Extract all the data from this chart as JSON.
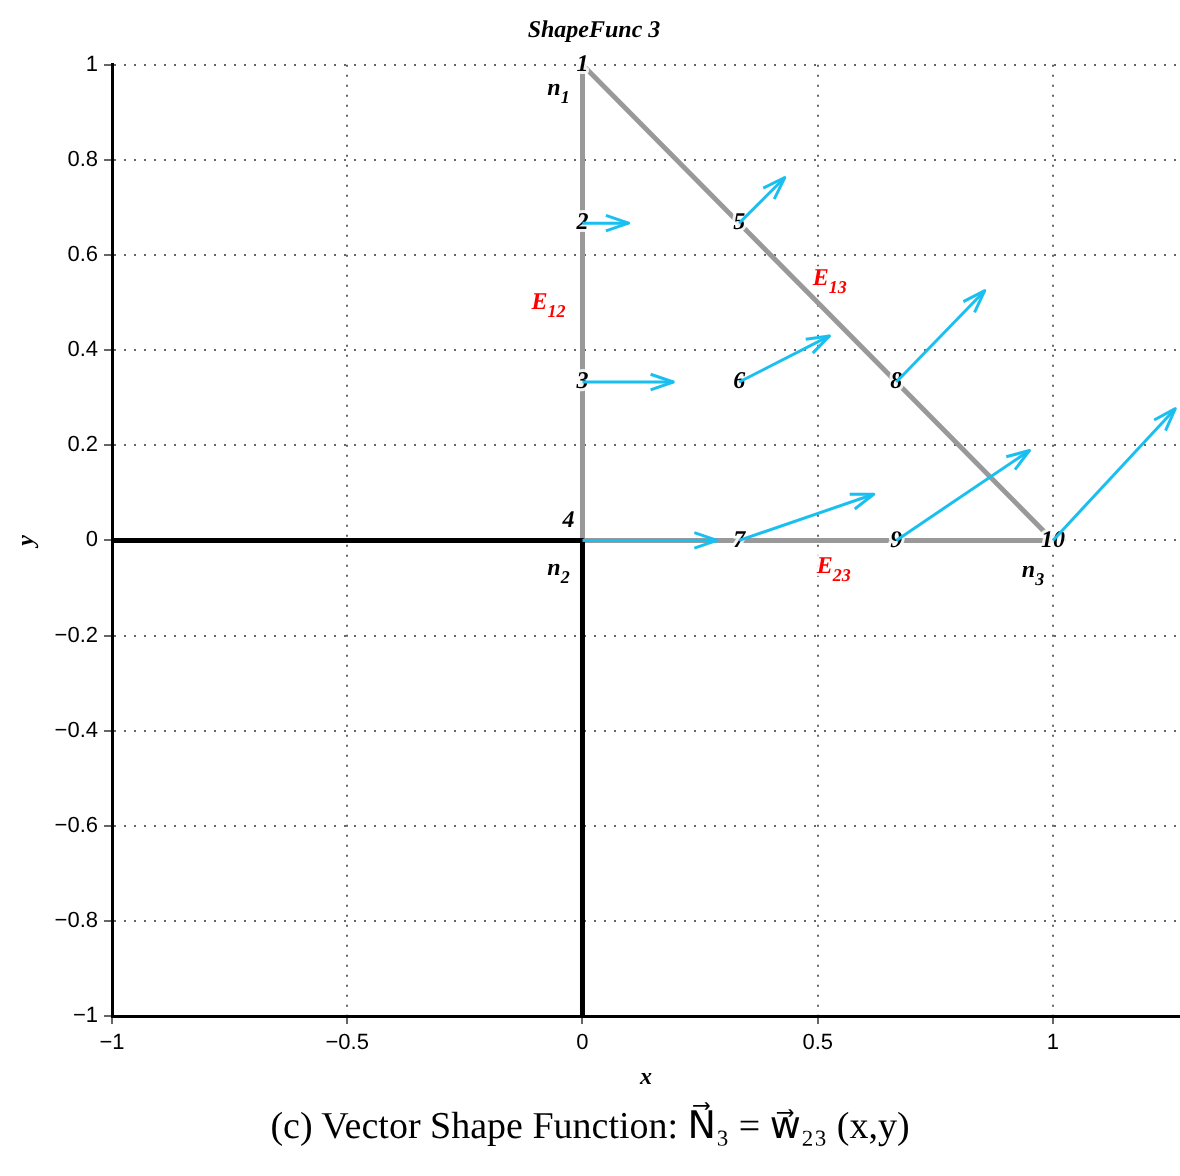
{
  "chart_data": {
    "type": "line",
    "title": "ShapeFunc 3",
    "xlabel": "x",
    "ylabel": "y",
    "xlim": [
      -1,
      1.27
    ],
    "ylim": [
      -1,
      1
    ],
    "xticks": [
      {
        "value": -1,
        "label": "−1"
      },
      {
        "value": -0.5,
        "label": "−0.5"
      },
      0,
      0.5,
      1
    ],
    "yticks": [
      {
        "value": -1,
        "label": "−1"
      },
      {
        "value": -0.8,
        "label": "−0.8"
      },
      {
        "value": -0.6,
        "label": "−0.6"
      },
      {
        "value": -0.4,
        "label": "−0.4"
      },
      {
        "value": -0.2,
        "label": "−0.2"
      },
      0,
      0.2,
      0.4,
      0.6,
      0.8,
      1
    ],
    "grid": true,
    "legend": false,
    "marker": "none",
    "line_style": "solid",
    "series": [
      {
        "color": "#000000",
        "x": [
          -1,
          0,
          0
        ],
        "values": [
          0,
          0,
          -1
        ]
      },
      {
        "color": "#999999",
        "x": [
          0,
          0,
          0,
          0.5,
          1
        ],
        "values": [
          1,
          0.5,
          0,
          0,
          0
        ]
      },
      {
        "color": "#999999",
        "x": [
          0,
          0.5,
          1
        ],
        "values": [
          1,
          0.5,
          0
        ]
      },
      {
        "color": "#19bff0",
        "x": [
          0,
          0.098
        ],
        "values": [
          0.667,
          0.667
        ]
      },
      {
        "color": "#19bff0",
        "x": [
          0,
          0.193
        ],
        "values": [
          0.333,
          0.333
        ]
      },
      {
        "color": "#19bff0",
        "x": [
          0,
          0.286
        ],
        "values": [
          0,
          0
        ]
      },
      {
        "color": "#19bff0",
        "x": [
          0.333,
          0.43
        ],
        "values": [
          0.667,
          0.763
        ]
      },
      {
        "color": "#19bff0",
        "x": [
          0.333,
          0.525
        ],
        "values": [
          0.333,
          0.43
        ]
      },
      {
        "color": "#19bff0",
        "x": [
          0.333,
          0.619
        ],
        "values": [
          0,
          0.097
        ]
      },
      {
        "color": "#19bff0",
        "x": [
          0.667,
          0.855
        ],
        "values": [
          0.333,
          0.525
        ]
      },
      {
        "color": "#19bff0",
        "x": [
          0.667,
          0.95
        ],
        "values": [
          0,
          0.189
        ]
      },
      {
        "color": "#19bff0",
        "x": [
          1,
          1.26
        ],
        "values": [
          0,
          0.277
        ]
      }
    ],
    "annotations": [
      {
        "text": "1",
        "x": 0,
        "y": 1
      },
      {
        "text": "2",
        "x": 0,
        "y": 0.667
      },
      {
        "text": "3",
        "x": 0,
        "y": 0.333
      },
      {
        "text": "4",
        "x": 0,
        "y": 0
      },
      {
        "text": "5",
        "x": 0.333,
        "y": 0.667
      },
      {
        "text": "6",
        "x": 0.333,
        "y": 0.333
      },
      {
        "text": "7",
        "x": 0.333,
        "y": 0
      },
      {
        "text": "8",
        "x": 0.667,
        "y": 0.333
      },
      {
        "text": "9",
        "x": 0.667,
        "y": 0
      },
      {
        "text": "10",
        "x": 1,
        "y": 0
      },
      {
        "text": "n$_{1}$",
        "x": 0,
        "y": 1
      },
      {
        "text": "n$_{2}$",
        "x": 0,
        "y": 0
      },
      {
        "text": "n$_{3}$",
        "x": 1,
        "y": 0
      },
      {
        "text": "E$_{12}$",
        "x": 0,
        "y": 0.5
      },
      {
        "text": "E$_{13}$",
        "x": 0.5,
        "y": 0.5
      },
      {
        "text": "E$_{23}$",
        "x": 0.5,
        "y": 0
      },
      "(c) Vector Shape Function: N⃗₃ = w⃗₂₃ (x,y)"
    ]
  }
}
